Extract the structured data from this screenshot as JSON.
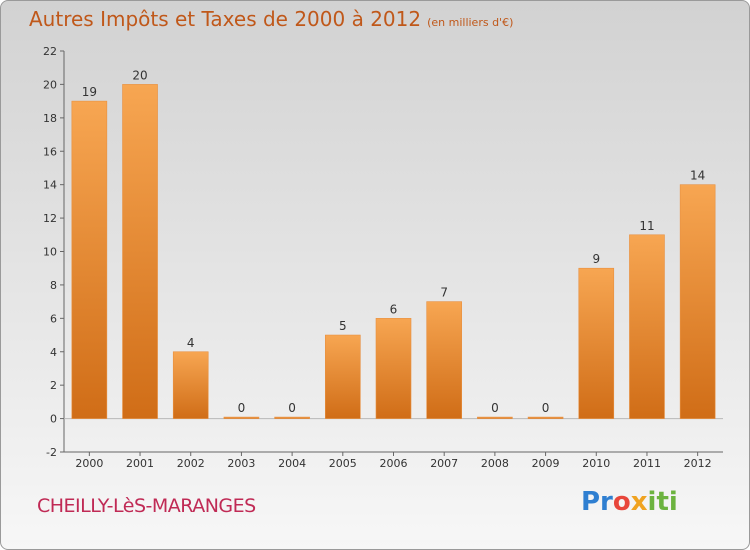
{
  "title": "Autres Impôts et Taxes de 2000 à 2012",
  "unit_label": "(en milliers d'€)",
  "commune": "CHEILLY-LèS-MARANGES",
  "logo": {
    "parts": [
      "Pr",
      "o",
      "x",
      "iti"
    ]
  },
  "colors": {
    "bar_top": "#f7a652",
    "bar_bottom": "#d06d17",
    "title": "#c0581a",
    "commune": "#c02a55"
  },
  "chart_data": {
    "type": "bar",
    "categories": [
      "2000",
      "2001",
      "2002",
      "2003",
      "2004",
      "2005",
      "2006",
      "2007",
      "2008",
      "2009",
      "2010",
      "2011",
      "2012"
    ],
    "values": [
      19,
      20,
      4,
      0,
      0,
      5,
      6,
      7,
      0,
      0,
      9,
      11,
      14
    ],
    "data_labels": [
      "19",
      "20",
      "4",
      "0",
      "0",
      "5",
      "6",
      "7",
      "0",
      "0",
      "9",
      "11",
      "14"
    ],
    "ylim": [
      -2,
      22
    ],
    "yticks": [
      -2,
      0,
      2,
      4,
      6,
      8,
      10,
      12,
      14,
      16,
      18,
      20,
      22
    ],
    "grid": false,
    "legend": "none"
  }
}
